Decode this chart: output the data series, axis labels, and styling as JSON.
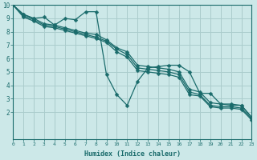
{
  "bg_color": "#cce8e8",
  "grid_color": "#aacccc",
  "line_color": "#1a6b6b",
  "xlabel": "Humidex (Indice chaleur)",
  "ylim": [
    0,
    10
  ],
  "xlim": [
    0,
    23
  ],
  "yticks": [
    2,
    3,
    4,
    5,
    6,
    7,
    8,
    9,
    10
  ],
  "xticks": [
    0,
    1,
    2,
    3,
    4,
    5,
    6,
    7,
    8,
    9,
    10,
    11,
    12,
    13,
    14,
    15,
    16,
    17,
    18,
    19,
    20,
    21,
    22,
    23
  ],
  "line_straight": {
    "x": [
      0,
      23
    ],
    "y": [
      10,
      1.6
    ]
  },
  "line_parallel1": {
    "x": [
      0,
      1,
      2,
      3,
      4,
      5,
      6,
      7,
      8,
      9,
      10,
      11,
      12,
      13,
      14,
      15,
      16,
      17,
      18,
      19,
      20,
      21,
      22,
      23
    ],
    "y": [
      10,
      9.3,
      9.0,
      8.6,
      8.5,
      8.3,
      8.1,
      7.9,
      7.8,
      7.4,
      6.8,
      6.5,
      5.5,
      5.4,
      5.3,
      5.2,
      5.0,
      3.7,
      3.5,
      2.7,
      2.6,
      2.6,
      2.5,
      1.6
    ]
  },
  "line_parallel2": {
    "x": [
      0,
      1,
      2,
      3,
      4,
      5,
      6,
      7,
      8,
      9,
      10,
      11,
      12,
      13,
      14,
      15,
      16,
      17,
      18,
      19,
      20,
      21,
      22,
      23
    ],
    "y": [
      10,
      9.2,
      8.9,
      8.5,
      8.4,
      8.2,
      8.0,
      7.8,
      7.6,
      7.3,
      6.7,
      6.3,
      5.3,
      5.2,
      5.1,
      5.0,
      4.8,
      3.5,
      3.3,
      2.5,
      2.4,
      2.4,
      2.3,
      1.5
    ]
  },
  "line_parallel3": {
    "x": [
      0,
      1,
      2,
      3,
      4,
      5,
      6,
      7,
      8,
      9,
      10,
      11,
      12,
      13,
      14,
      15,
      16,
      17,
      18,
      19,
      20,
      21,
      22,
      23
    ],
    "y": [
      10,
      9.1,
      8.8,
      8.4,
      8.3,
      8.1,
      7.9,
      7.7,
      7.5,
      7.2,
      6.5,
      6.1,
      5.1,
      5.0,
      4.9,
      4.8,
      4.6,
      3.3,
      3.2,
      2.4,
      2.3,
      2.3,
      2.2,
      1.4
    ]
  },
  "line_zigzag": {
    "x": [
      0,
      1,
      2,
      3,
      4,
      5,
      6,
      7,
      8,
      9,
      10,
      11,
      12,
      13,
      14,
      15,
      16,
      17,
      18,
      19,
      20,
      21,
      22,
      23
    ],
    "y": [
      10,
      9.3,
      9.0,
      9.1,
      8.5,
      9.0,
      8.9,
      9.5,
      9.5,
      4.8,
      3.3,
      2.5,
      4.3,
      5.3,
      5.4,
      5.5,
      5.5,
      5.0,
      3.4,
      3.4,
      2.6,
      2.5,
      2.5,
      1.6
    ]
  },
  "markersize": 2.5,
  "linewidth": 0.9
}
